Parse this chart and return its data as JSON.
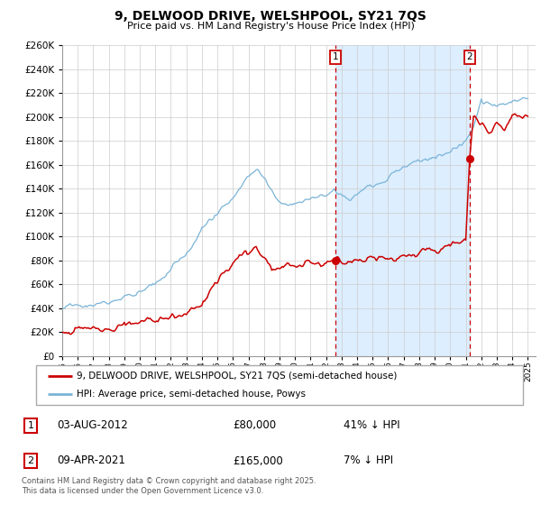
{
  "title": "9, DELWOOD DRIVE, WELSHPOOL, SY21 7QS",
  "subtitle": "Price paid vs. HM Land Registry's House Price Index (HPI)",
  "property_label": "9, DELWOOD DRIVE, WELSHPOOL, SY21 7QS (semi-detached house)",
  "hpi_label": "HPI: Average price, semi-detached house, Powys",
  "sale1_date": "03-AUG-2012",
  "sale1_price": "£80,000",
  "sale1_note": "41% ↓ HPI",
  "sale2_date": "09-APR-2021",
  "sale2_price": "£165,000",
  "sale2_note": "7% ↓ HPI",
  "footnote": "Contains HM Land Registry data © Crown copyright and database right 2025.\nThis data is licensed under the Open Government Licence v3.0.",
  "ylim": [
    0,
    260000
  ],
  "yticks": [
    0,
    20000,
    40000,
    60000,
    80000,
    100000,
    120000,
    140000,
    160000,
    180000,
    200000,
    220000,
    240000,
    260000
  ],
  "year_start": 1995,
  "year_end": 2025,
  "sale1_year": 2012.583,
  "sale2_year": 2021.25,
  "sale1_price_val": 80000,
  "sale2_price_val": 165000,
  "hpi_color": "#7ab4d8",
  "price_color": "#cc0000",
  "shaded_color": "#ddeeff",
  "grid_color": "#cccccc"
}
